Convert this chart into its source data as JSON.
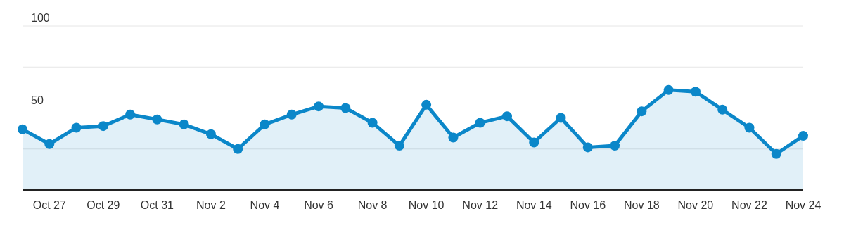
{
  "chart_data": {
    "type": "area",
    "categories": [
      null,
      "Oct 27",
      null,
      "Oct 29",
      null,
      "Oct 31",
      null,
      "Nov 2",
      null,
      "Nov 4",
      null,
      "Nov 6",
      null,
      "Nov 8",
      null,
      "Nov 10",
      null,
      "Nov 12",
      null,
      "Nov 14",
      null,
      "Nov 16",
      null,
      "Nov 18",
      null,
      "Nov 20",
      null,
      "Nov 22",
      null,
      "Nov 24"
    ],
    "series": [
      {
        "color": "#0b87c9",
        "values": [
          37,
          28,
          38,
          39,
          46,
          43,
          40,
          34,
          25,
          40,
          46,
          51,
          50,
          41,
          27,
          52,
          32,
          41,
          45,
          29,
          44,
          26,
          27,
          48,
          61,
          60,
          49,
          38,
          22,
          33
        ]
      }
    ],
    "ylim": [
      0,
      100
    ],
    "yticks": [
      {
        "value": 0,
        "label": null
      },
      {
        "value": 25,
        "label": null
      },
      50,
      {
        "value": 75,
        "label": null
      },
      100
    ],
    "grid": "y",
    "marker": "circle",
    "legend": false
  }
}
